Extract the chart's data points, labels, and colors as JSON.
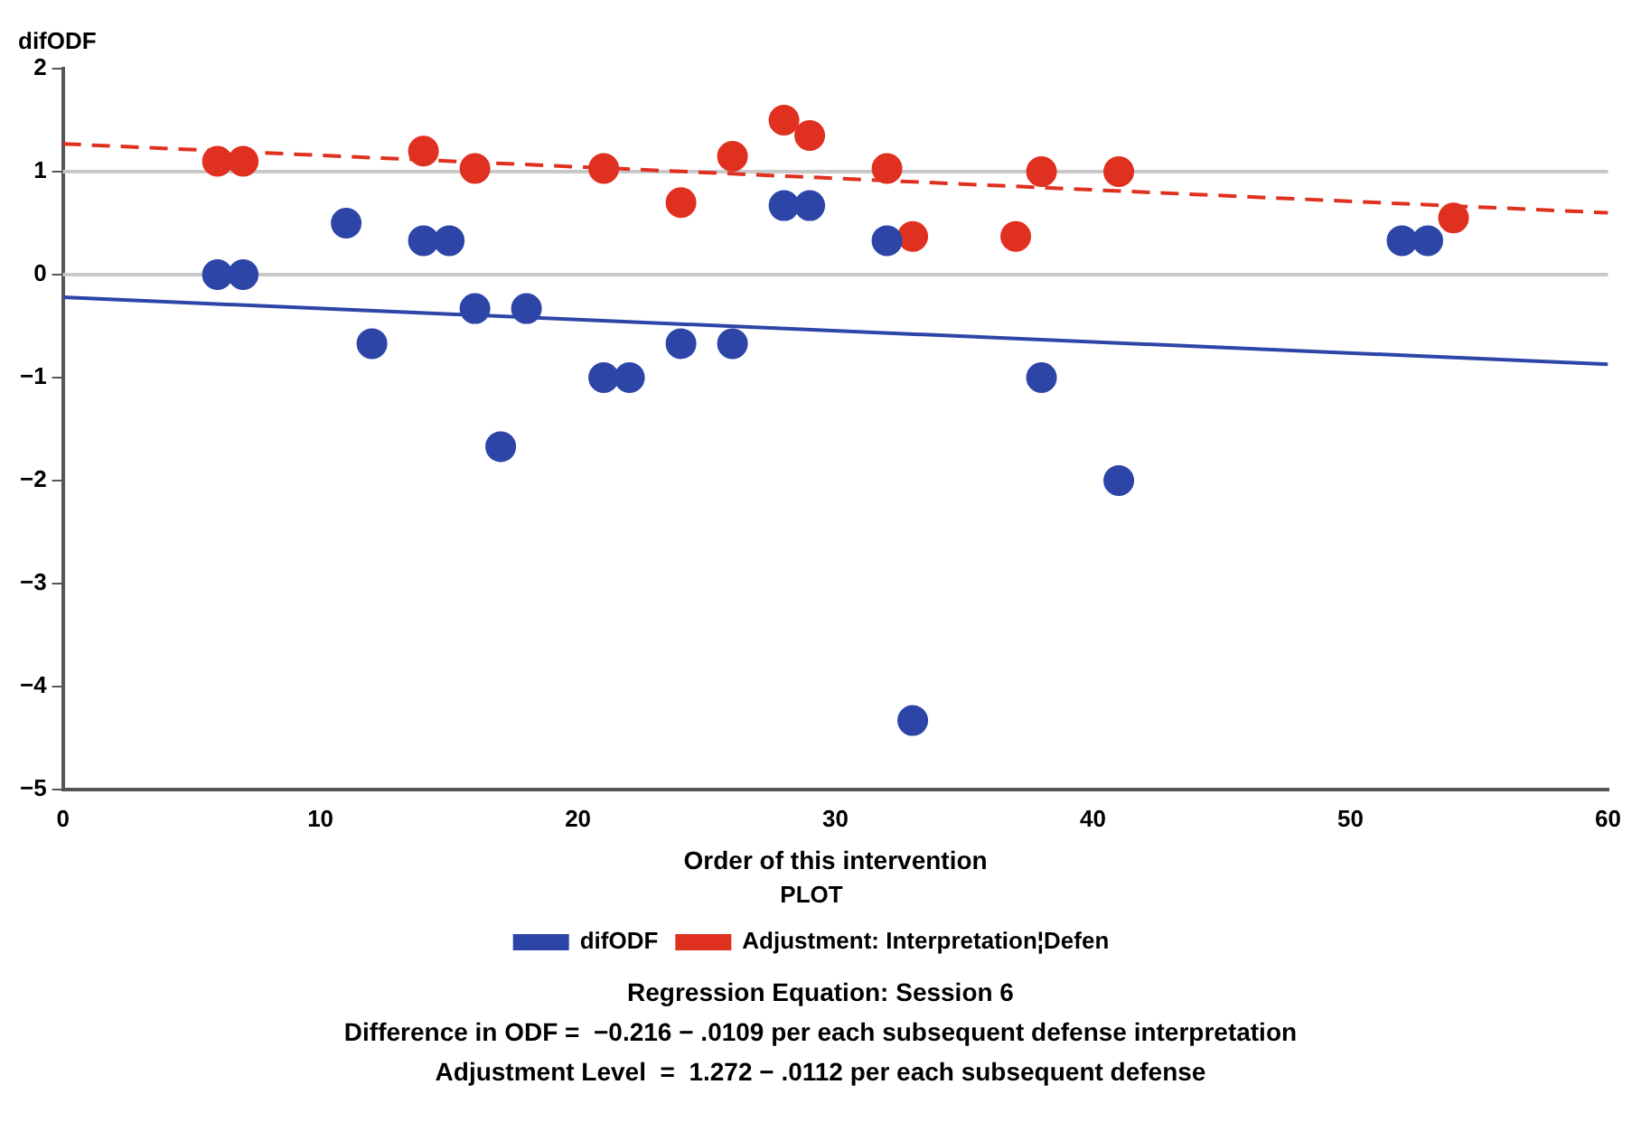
{
  "chart_data": {
    "type": "scatter",
    "xlabel": "Order of this intervention",
    "ylabel": "difODF",
    "legend_title": "PLOT",
    "legend": "bottom",
    "marker": "circle",
    "grid": false,
    "xlim": [
      0,
      60
    ],
    "xticks": [
      0,
      10,
      20,
      30,
      40,
      50,
      60
    ],
    "ylim": [
      -5,
      2
    ],
    "yticks": [
      -5,
      -4,
      -3,
      -2,
      -1,
      0,
      1,
      2
    ],
    "series": [
      {
        "name": "difODF",
        "color": "#2e45a8",
        "x": [
          6,
          7,
          11,
          12,
          14,
          15,
          16,
          17,
          18,
          21,
          22,
          24,
          26,
          28,
          29,
          32,
          33,
          38,
          41,
          52,
          53
        ],
        "values": [
          0,
          0,
          0.5,
          -0.67,
          0.33,
          0.33,
          -0.33,
          -1.67,
          -0.33,
          -1,
          -1,
          -0.67,
          -0.67,
          0.67,
          0.67,
          0.33,
          -4.33,
          -1,
          -2,
          0.33,
          0.33
        ]
      },
      {
        "name": "Adjustment: Interpretation¦Defen",
        "color": "#e03020",
        "x": [
          6,
          7,
          14,
          16,
          21,
          24,
          26,
          28,
          29,
          32,
          33,
          37,
          38,
          41,
          54
        ],
        "values": [
          1.1,
          1.1,
          1.2,
          1.03,
          1.03,
          0.7,
          1.15,
          1.5,
          1.35,
          1.03,
          0.37,
          0.37,
          1.0,
          1.0,
          0.55
        ]
      },
      {
        "type": "line",
        "color": "#2e45a8",
        "line_style": "solid",
        "marker": "none",
        "x": [
          0,
          60
        ],
        "values": [
          -0.22,
          -0.87
        ]
      },
      {
        "type": "line",
        "color": "#e03020",
        "line_style": "dashed",
        "marker": "none",
        "x": [
          0,
          60
        ],
        "values": [
          1.27,
          0.6
        ]
      }
    ],
    "ref_lines": [
      {
        "axis": "y",
        "value": 0,
        "color": "#c8c8c8"
      },
      {
        "axis": "y",
        "value": 1,
        "color": "#c8c8c8"
      }
    ],
    "annotations": [
      "Regression Equation: Session 6",
      "Difference in ODF =  −0.216 − .0109 per each subsequent defense interpretation",
      "Adjustment Level  =  1.272 − .0112 per each subsequent defense"
    ]
  }
}
